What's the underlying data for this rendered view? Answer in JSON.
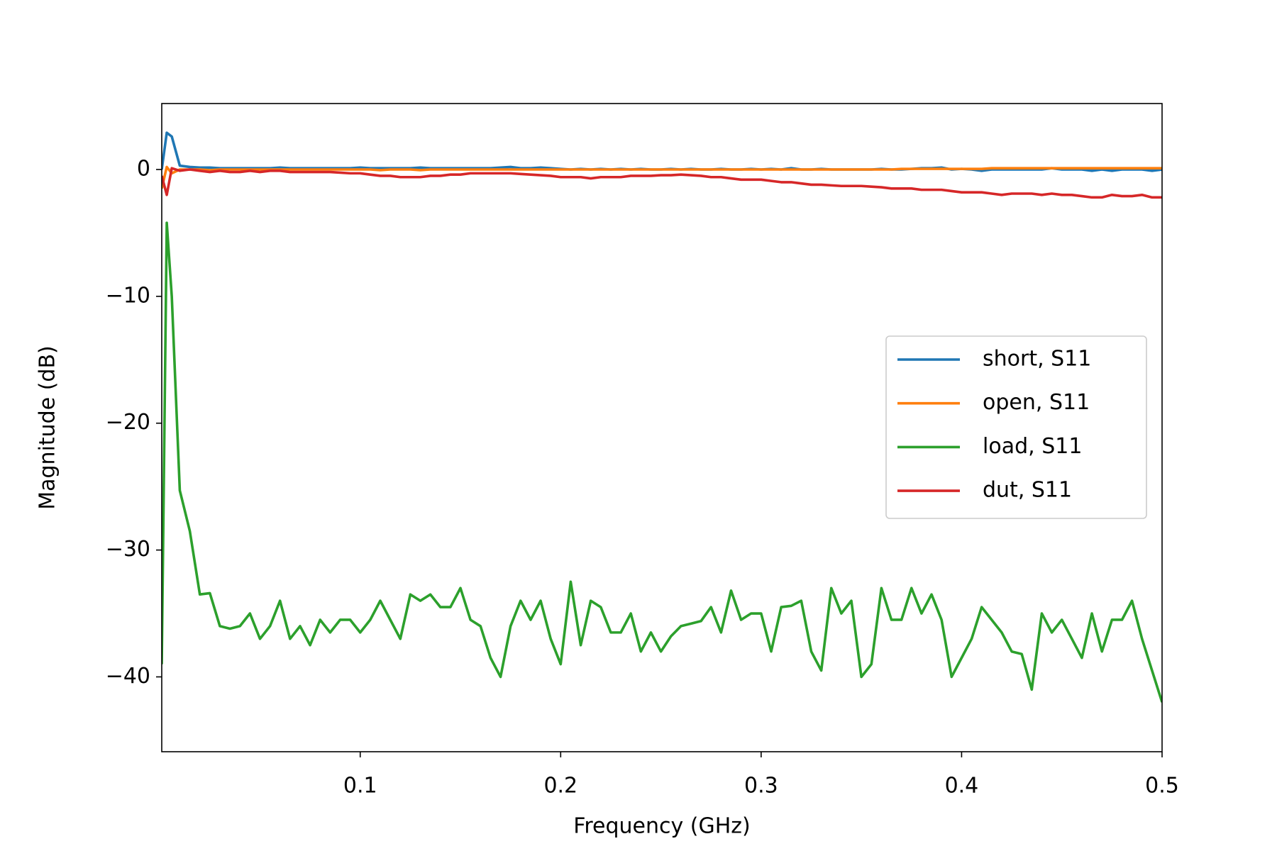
{
  "chart_data": {
    "type": "line",
    "xlabel": "Frequency (GHz)",
    "ylabel": "Magnitude (dB)",
    "xlim": [
      0.001,
      0.5
    ],
    "ylim": [
      -45.9,
      5.2
    ],
    "xticks": [
      0.1,
      0.2,
      0.3,
      0.4,
      0.5
    ],
    "yticks": [
      0,
      {
        "value": -10,
        "label": "−10"
      },
      {
        "value": -20,
        "label": "−20"
      },
      {
        "value": -30,
        "label": "−30"
      },
      {
        "value": -40,
        "label": "−40"
      }
    ],
    "legend": "center-right",
    "x": [
      0.001,
      0.0035,
      0.006,
      0.01,
      0.015,
      0.02,
      0.025,
      0.03,
      0.035,
      0.04,
      0.045,
      0.05,
      0.055,
      0.06,
      0.065,
      0.07,
      0.075,
      0.08,
      0.085,
      0.09,
      0.095,
      0.1,
      0.105,
      0.11,
      0.115,
      0.12,
      0.125,
      0.13,
      0.135,
      0.14,
      0.145,
      0.15,
      0.155,
      0.16,
      0.165,
      0.17,
      0.175,
      0.18,
      0.185,
      0.19,
      0.195,
      0.2,
      0.205,
      0.21,
      0.215,
      0.22,
      0.225,
      0.23,
      0.235,
      0.24,
      0.245,
      0.25,
      0.255,
      0.26,
      0.265,
      0.27,
      0.275,
      0.28,
      0.285,
      0.29,
      0.295,
      0.3,
      0.305,
      0.31,
      0.315,
      0.32,
      0.325,
      0.33,
      0.335,
      0.34,
      0.345,
      0.35,
      0.355,
      0.36,
      0.365,
      0.37,
      0.375,
      0.38,
      0.385,
      0.39,
      0.395,
      0.4,
      0.405,
      0.41,
      0.415,
      0.42,
      0.425,
      0.43,
      0.435,
      0.44,
      0.445,
      0.45,
      0.455,
      0.46,
      0.465,
      0.47,
      0.475,
      0.48,
      0.485,
      0.49,
      0.495,
      0.5
    ],
    "series": [
      {
        "name": "short, S11",
        "color": "#1f77b4",
        "values": [
          0,
          2.9,
          2.6,
          0.3,
          0.2,
          0.15,
          0.15,
          0.1,
          0.1,
          0.1,
          0.1,
          0.1,
          0.1,
          0.15,
          0.1,
          0.1,
          0.1,
          0.1,
          0.1,
          0.1,
          0.1,
          0.15,
          0.1,
          0.1,
          0.1,
          0.1,
          0.1,
          0.15,
          0.1,
          0.1,
          0.1,
          0.1,
          0.1,
          0.1,
          0.1,
          0.15,
          0.2,
          0.1,
          0.1,
          0.15,
          0.1,
          0.05,
          0,
          0.05,
          0,
          0.05,
          0,
          0.05,
          0,
          0.05,
          0,
          0,
          0.05,
          0,
          0.05,
          0,
          0,
          0.05,
          0,
          0,
          0.05,
          0,
          0.05,
          0,
          0.1,
          0,
          0,
          0.05,
          0,
          0,
          0,
          0,
          0,
          0.05,
          0,
          0,
          0.05,
          0.1,
          0.1,
          0.15,
          0,
          0.05,
          0,
          -0.1,
          0,
          0,
          0,
          0,
          0,
          0,
          0.1,
          0,
          0,
          0,
          -0.1,
          0,
          -0.1,
          0,
          0,
          0,
          -0.1,
          0
        ]
      },
      {
        "name": "open, S11",
        "color": "#ff7f0e",
        "values": [
          -1.5,
          0.2,
          -0.3,
          0,
          0,
          0,
          -0.05,
          0,
          0,
          0,
          0,
          0,
          0,
          0,
          0,
          0,
          0,
          0,
          0,
          0,
          0,
          0,
          0,
          -0.05,
          0,
          0,
          0,
          -0.05,
          0,
          0,
          0,
          0,
          0,
          0,
          0,
          0,
          0,
          0,
          0,
          0,
          0,
          0,
          0,
          0,
          0,
          0,
          0,
          0,
          0,
          0,
          0,
          0,
          0,
          0,
          0,
          0,
          0,
          0,
          0,
          0,
          0,
          0,
          0,
          0,
          0,
          0,
          0,
          0,
          0,
          0,
          0,
          0,
          0,
          0,
          0,
          0.05,
          0.05,
          0.05,
          0.05,
          0.05,
          0.05,
          0.05,
          0.05,
          0.05,
          0.1,
          0.1,
          0.1,
          0.1,
          0.1,
          0.1,
          0.1,
          0.1,
          0.1,
          0.1,
          0.1,
          0.1,
          0.1,
          0.1,
          0.1,
          0.1,
          0.1,
          0.1
        ]
      },
      {
        "name": "load, S11",
        "color": "#2ca02c",
        "values": [
          -39,
          -4.2,
          -10,
          -25.3,
          -28.5,
          -33.5,
          -33.4,
          -36,
          -36.2,
          -36,
          -35,
          -37,
          -36,
          -34,
          -37,
          -36,
          -37.5,
          -35.5,
          -36.5,
          -35.5,
          -35.5,
          -36.5,
          -35.5,
          -34,
          -35.5,
          -37,
          -33.5,
          -34,
          -33.5,
          -34.5,
          -34.5,
          -33,
          -35.5,
          -36,
          -38.5,
          -40,
          -36,
          -34,
          -35.5,
          -34,
          -37,
          -39,
          -32.5,
          -37.5,
          -34,
          -34.5,
          -36.5,
          -36.5,
          -35,
          -38,
          -36.5,
          -38,
          -36.8,
          -36,
          -35.8,
          -35.6,
          -34.5,
          -36.5,
          -33.2,
          -35.5,
          -35,
          -35,
          -38,
          -34.5,
          -34.4,
          -34,
          -38,
          -39.5,
          -33,
          -35,
          -34,
          -40,
          -39,
          -33,
          -35.5,
          -35.5,
          -33,
          -35,
          -33.5,
          -35.5,
          -40,
          -38.5,
          -37,
          -34.5,
          -35.5,
          -36.5,
          -38,
          -38.2,
          -41,
          -35,
          -36.5,
          -35.5,
          -37,
          -38.5,
          -35,
          -38,
          -35.5,
          -35.5,
          -34,
          -37,
          -39.5,
          -42
        ]
      },
      {
        "name": "dut, S11",
        "color": "#d62728",
        "values": [
          -0.5,
          -2,
          0.1,
          -0.1,
          0,
          -0.1,
          -0.2,
          -0.1,
          -0.2,
          -0.2,
          -0.1,
          -0.2,
          -0.1,
          -0.1,
          -0.2,
          -0.2,
          -0.2,
          -0.2,
          -0.2,
          -0.25,
          -0.3,
          -0.3,
          -0.4,
          -0.5,
          -0.5,
          -0.6,
          -0.6,
          -0.6,
          -0.5,
          -0.5,
          -0.4,
          -0.4,
          -0.3,
          -0.3,
          -0.3,
          -0.3,
          -0.3,
          -0.35,
          -0.4,
          -0.45,
          -0.5,
          -0.6,
          -0.6,
          -0.6,
          -0.7,
          -0.6,
          -0.6,
          -0.6,
          -0.5,
          -0.5,
          -0.5,
          -0.45,
          -0.45,
          -0.4,
          -0.45,
          -0.5,
          -0.6,
          -0.6,
          -0.7,
          -0.8,
          -0.8,
          -0.8,
          -0.9,
          -1,
          -1,
          -1.1,
          -1.2,
          -1.2,
          -1.25,
          -1.3,
          -1.3,
          -1.3,
          -1.35,
          -1.4,
          -1.5,
          -1.5,
          -1.5,
          -1.6,
          -1.6,
          -1.6,
          -1.7,
          -1.8,
          -1.8,
          -1.8,
          -1.9,
          -2,
          -1.9,
          -1.9,
          -1.9,
          -2,
          -1.9,
          -2,
          -2,
          -2.1,
          -2.2,
          -2.2,
          -2,
          -2.1,
          -2.1,
          -2,
          -2.2,
          -2.2
        ]
      }
    ]
  }
}
